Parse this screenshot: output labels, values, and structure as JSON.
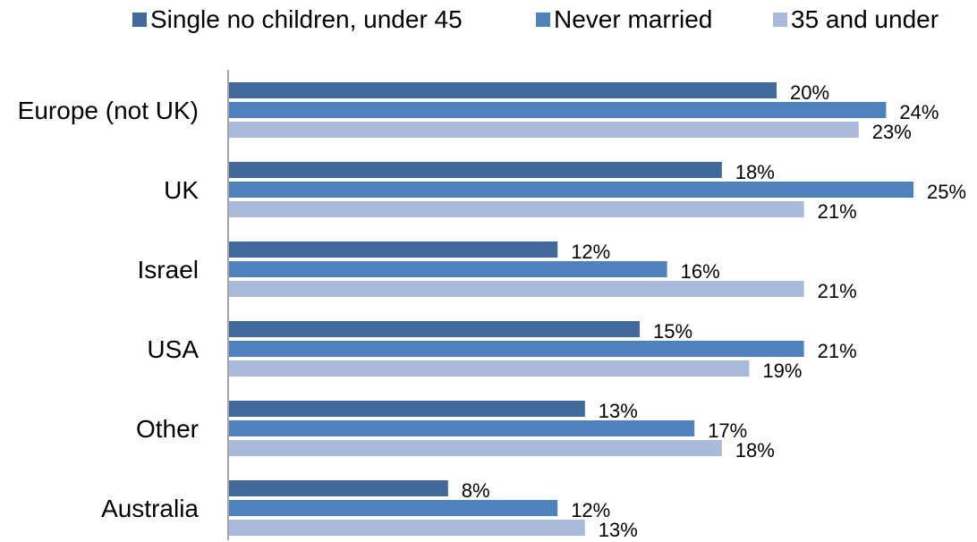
{
  "chart_data": {
    "type": "bar",
    "orientation": "horizontal",
    "categories": [
      "Europe (not UK)",
      "UK",
      "Israel",
      "USA",
      "Other",
      "Australia"
    ],
    "series": [
      {
        "name": "Single no children, under 45",
        "values": [
          20,
          18,
          12,
          15,
          13,
          8
        ],
        "labels": [
          "20%",
          "18%",
          "12%",
          "15%",
          "13%",
          "8%"
        ]
      },
      {
        "name": "Never married",
        "values": [
          24,
          25,
          16,
          21,
          17,
          12
        ],
        "labels": [
          "24%",
          "25%",
          "16%",
          "21%",
          "17%",
          "12%"
        ]
      },
      {
        "name": "35 and under",
        "values": [
          23,
          21,
          21,
          19,
          18,
          13
        ],
        "labels": [
          "23%",
          "21%",
          "21%",
          "19%",
          "18%",
          "13%"
        ]
      }
    ],
    "colors": [
      "#41699b",
      "#4f81bd",
      "#a9bada"
    ],
    "value_unit": "%",
    "xlim": [
      0,
      26
    ],
    "legend_position": "top",
    "grid": false,
    "title": "",
    "xlabel": "",
    "ylabel": ""
  }
}
